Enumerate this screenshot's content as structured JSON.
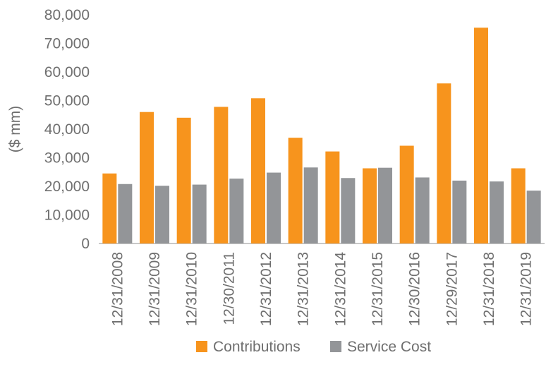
{
  "chart_data": {
    "type": "bar",
    "title": "",
    "xlabel": "",
    "ylabel": "($ mm)",
    "ylim": [
      0,
      80000
    ],
    "yticks": [
      "0",
      "10,000",
      "20,000",
      "30,000",
      "40,000",
      "50,000",
      "60,000",
      "70,000",
      "80,000"
    ],
    "ytick_values": [
      0,
      10000,
      20000,
      30000,
      40000,
      50000,
      60000,
      70000,
      80000
    ],
    "grid": false,
    "legend_position": "bottom",
    "categories": [
      "12/31/2008",
      "12/31/2009",
      "12/31/2010",
      "12/30/2011",
      "12/31/2012",
      "12/31/2013",
      "12/31/2014",
      "12/31/2015",
      "12/30/2016",
      "12/29/2017",
      "12/31/2018",
      "12/31/2019"
    ],
    "series": [
      {
        "name": "Contributions",
        "color": "#f7941d",
        "values": [
          24500,
          46000,
          44000,
          47800,
          50800,
          37000,
          32200,
          26300,
          34200,
          56000,
          75500,
          26300
        ]
      },
      {
        "name": "Service Cost",
        "color": "#939598",
        "values": [
          20800,
          20200,
          20600,
          22700,
          24800,
          26600,
          22900,
          26500,
          23100,
          22000,
          21700,
          18500
        ]
      }
    ]
  }
}
